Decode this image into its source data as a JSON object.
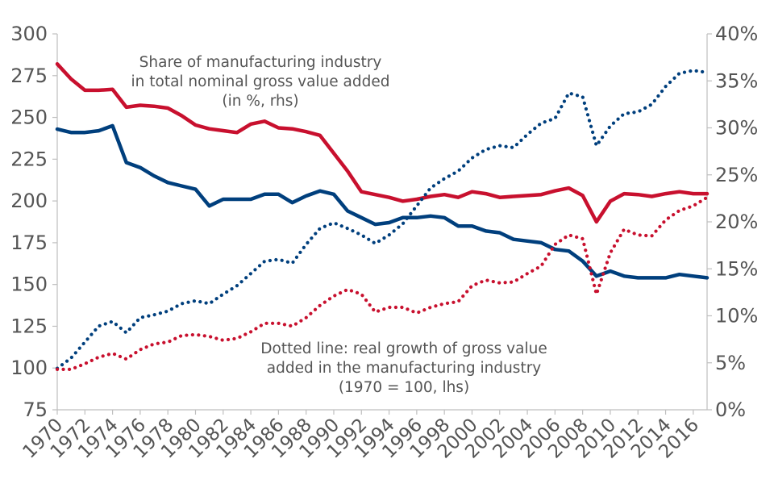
{
  "chart_data": {
    "type": "line",
    "title": "",
    "xlabel": "",
    "ylabel": "",
    "x_tick_labels": [
      "1970",
      "1972",
      "1974",
      "1976",
      "1978",
      "1980",
      "1982",
      "1984",
      "1986",
      "1988",
      "1990",
      "1992",
      "1994",
      "1996",
      "1998",
      "2000",
      "2002",
      "2004",
      "2006",
      "2008",
      "2010",
      "2012",
      "2014",
      "2016"
    ],
    "left_axis": {
      "tick_labels": [
        "300",
        "275",
        "250",
        "225",
        "200",
        "175",
        "150",
        "125",
        "100",
        "75"
      ],
      "ylim": [
        75,
        300
      ]
    },
    "right_axis": {
      "tick_labels": [
        "40%",
        "35%",
        "30%",
        "25%",
        "20%",
        "15%",
        "10%",
        "5%",
        "0%"
      ],
      "ylim": [
        0,
        40
      ]
    },
    "xlim": [
      1970,
      2017
    ],
    "grid": false,
    "annotations": [
      {
        "lines": [
          "Share of manufacturing industry",
          "in total nominal gross value added",
          "(in %, rhs)"
        ]
      },
      {
        "lines": [
          "Dotted line: real growth of gross value",
          "added in the manufacturing industry",
          "(1970 = 100, lhs)"
        ]
      }
    ],
    "series": [
      {
        "axis": "right",
        "style": "solid",
        "color": "#c8102e",
        "x": [
          1970,
          1971,
          1972,
          1973,
          1974,
          1975,
          1976,
          1977,
          1978,
          1979,
          1980,
          1981,
          1982,
          1983,
          1984,
          1985,
          1986,
          1987,
          1988,
          1989,
          1990,
          1991,
          1992,
          1993,
          1994,
          1995,
          1996,
          1997,
          1998,
          1999,
          2000,
          2001,
          2002,
          2003,
          2004,
          2005,
          2006,
          2007,
          2008,
          2009,
          2010,
          2011,
          2012,
          2013,
          2014,
          2015,
          2016,
          2017
        ],
        "y": [
          36.8,
          35.2,
          34.0,
          34.0,
          34.1,
          32.2,
          32.4,
          32.3,
          32.1,
          31.3,
          30.3,
          29.9,
          29.7,
          29.5,
          30.4,
          30.7,
          30.0,
          29.9,
          29.6,
          29.2,
          27.3,
          25.4,
          23.2,
          22.9,
          22.6,
          22.2,
          22.4,
          22.7,
          22.9,
          22.6,
          23.2,
          23.0,
          22.6,
          22.7,
          22.8,
          22.9,
          23.3,
          23.6,
          22.8,
          20.0,
          22.2,
          23.0,
          22.9,
          22.7,
          23.0,
          23.2,
          23.0,
          23.0
        ]
      },
      {
        "axis": "left",
        "style": "solid",
        "color": "#003f7d",
        "x": [
          1970,
          1971,
          1972,
          1973,
          1974,
          1975,
          1976,
          1977,
          1978,
          1979,
          1980,
          1981,
          1982,
          1983,
          1984,
          1985,
          1986,
          1987,
          1988,
          1989,
          1990,
          1991,
          1992,
          1993,
          1994,
          1995,
          1996,
          1997,
          1998,
          1999,
          2000,
          2001,
          2002,
          2003,
          2004,
          2005,
          2006,
          2007,
          2008,
          2009,
          2010,
          2011,
          2012,
          2013,
          2014,
          2015,
          2016,
          2017
        ],
        "y": [
          243,
          241,
          241,
          242,
          245,
          223,
          220,
          215,
          211,
          209,
          207,
          197,
          201,
          201,
          201,
          204,
          204,
          199,
          203,
          206,
          204,
          194,
          190,
          186,
          187,
          190,
          190,
          191,
          190,
          185,
          185,
          182,
          181,
          177,
          176,
          175,
          171,
          170,
          164,
          155,
          158,
          155,
          154,
          154,
          154,
          156,
          155,
          154
        ]
      },
      {
        "axis": "right",
        "style": "dotted",
        "color": "#003f7d",
        "x": [
          1970,
          1971,
          1972,
          1973,
          1974,
          1975,
          1976,
          1977,
          1978,
          1979,
          1980,
          1981,
          1982,
          1983,
          1984,
          1985,
          1986,
          1987,
          1988,
          1989,
          1990,
          1991,
          1992,
          1993,
          1994,
          1995,
          1996,
          1997,
          1998,
          1999,
          2000,
          2001,
          2002,
          2003,
          2004,
          2005,
          2006,
          2007,
          2008,
          2009,
          2010,
          2011,
          2012,
          2013,
          2014,
          2015,
          2016,
          2017
        ],
        "y": [
          4.4,
          5.5,
          7.2,
          8.9,
          9.4,
          8.2,
          9.8,
          10.1,
          10.5,
          11.3,
          11.6,
          11.3,
          12.3,
          13.2,
          14.5,
          15.8,
          16.0,
          15.6,
          17.6,
          19.3,
          19.9,
          19.3,
          18.6,
          17.7,
          18.6,
          19.8,
          21.7,
          23.6,
          24.6,
          25.4,
          26.8,
          27.7,
          28.1,
          27.9,
          29.3,
          30.5,
          31.0,
          33.7,
          33.3,
          28.1,
          30.2,
          31.5,
          31.7,
          32.5,
          34.4,
          35.8,
          36.1,
          35.9
        ]
      },
      {
        "axis": "right",
        "style": "dotted",
        "color": "#c8102e",
        "x": [
          1970,
          1971,
          1972,
          1973,
          1974,
          1975,
          1976,
          1977,
          1978,
          1979,
          1980,
          1981,
          1982,
          1983,
          1984,
          1985,
          1986,
          1987,
          1988,
          1989,
          1990,
          1991,
          1992,
          1993,
          1994,
          1995,
          1996,
          1997,
          1998,
          1999,
          2000,
          2001,
          2002,
          2003,
          2004,
          2005,
          2006,
          2007,
          2008,
          2009,
          2010,
          2011,
          2012,
          2013,
          2014,
          2015,
          2016,
          2017
        ],
        "y": [
          4.3,
          4.3,
          4.9,
          5.6,
          6.0,
          5.4,
          6.4,
          7.0,
          7.2,
          7.9,
          8.0,
          7.8,
          7.4,
          7.6,
          8.3,
          9.2,
          9.2,
          8.9,
          9.8,
          11.1,
          12.1,
          12.8,
          12.3,
          10.4,
          10.9,
          10.9,
          10.3,
          10.9,
          11.3,
          11.5,
          13.2,
          13.8,
          13.5,
          13.6,
          14.5,
          15.3,
          17.6,
          18.6,
          18.2,
          12.3,
          16.7,
          19.2,
          18.6,
          18.5,
          20.2,
          21.2,
          21.7,
          22.6
        ]
      }
    ]
  }
}
